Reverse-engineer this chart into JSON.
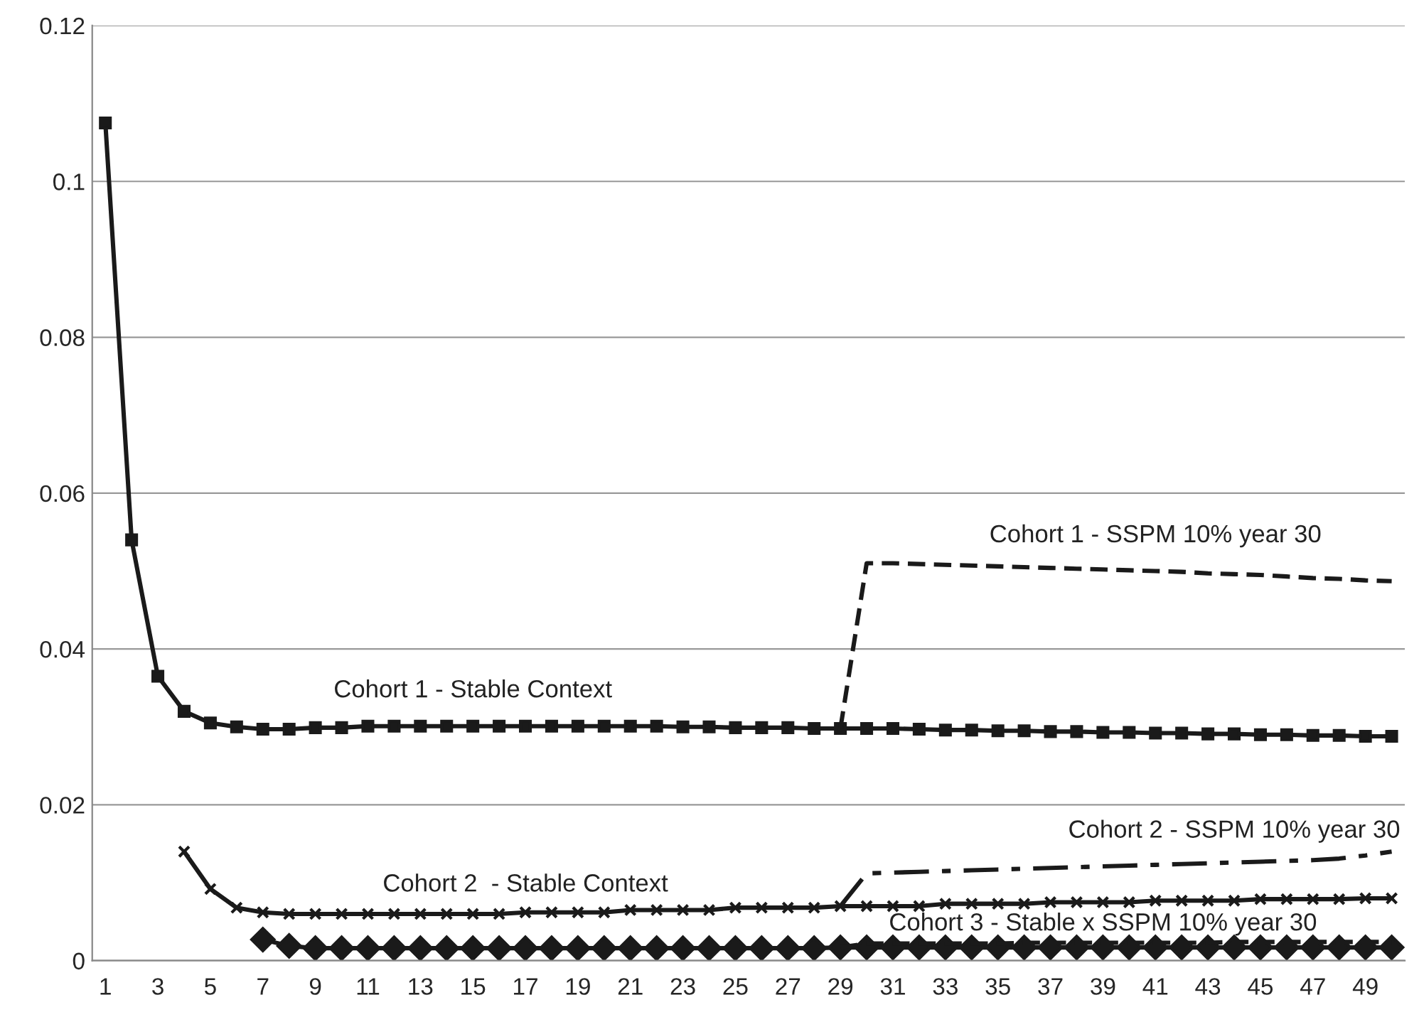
{
  "chart_data": {
    "type": "line",
    "categories": [
      "1",
      null,
      "3",
      null,
      "5",
      null,
      "7",
      null,
      "9",
      null,
      "11",
      null,
      "13",
      null,
      "15",
      null,
      "17",
      null,
      "19",
      null,
      "21",
      null,
      "23",
      null,
      "25",
      null,
      "27",
      null,
      "29",
      null,
      "31",
      null,
      "33",
      null,
      "35",
      null,
      "37",
      null,
      "39",
      null,
      "41",
      null,
      "43",
      null,
      "45",
      null,
      "47",
      null,
      "49",
      null
    ],
    "ylim": [
      0,
      0.12
    ],
    "yticks": [
      0,
      0.02,
      0.04,
      0.06,
      0.08,
      0.1,
      0.12
    ],
    "grid": "y",
    "legend": false,
    "series": [
      {
        "name": "Cohort 1 - Stable Context",
        "color": "#1a1a1a",
        "marker": "square",
        "line_style": "solid",
        "values": [
          0.1075,
          0.054,
          0.0365,
          0.032,
          0.0305,
          0.03,
          0.0297,
          0.0297,
          0.0299,
          0.0299,
          0.0301,
          0.0301,
          0.0301,
          0.0301,
          0.0301,
          0.0301,
          0.0301,
          0.0301,
          0.0301,
          0.0301,
          0.0301,
          0.0301,
          0.03,
          0.03,
          0.0299,
          0.0299,
          0.0299,
          0.0298,
          0.0298,
          0.0298,
          0.0298,
          0.0297,
          0.0296,
          0.0296,
          0.0295,
          0.0295,
          0.0294,
          0.0294,
          0.0293,
          0.0293,
          0.0292,
          0.0292,
          0.0291,
          0.0291,
          0.029,
          0.029,
          0.0289,
          0.0289,
          0.0288,
          0.0288
        ]
      },
      {
        "name": "Cohort 1 - SSPM 10% year 30",
        "color": "#1a1a1a",
        "marker": "none",
        "line_style": "dashed",
        "values": [
          null,
          null,
          null,
          null,
          null,
          null,
          null,
          null,
          null,
          null,
          null,
          null,
          null,
          null,
          null,
          null,
          null,
          null,
          null,
          null,
          null,
          null,
          null,
          null,
          null,
          null,
          null,
          null,
          0.0298,
          0.051,
          0.051,
          0.0509,
          0.0508,
          0.0507,
          0.0506,
          0.0505,
          0.0504,
          0.0503,
          0.0502,
          0.0501,
          0.05,
          0.0499,
          0.0497,
          0.0496,
          0.0495,
          0.0493,
          0.0491,
          0.049,
          0.0488,
          0.0487
        ]
      },
      {
        "name": "Cohort 2  - Stable Context",
        "color": "#1a1a1a",
        "marker": "cross",
        "line_style": "solid",
        "values": [
          null,
          null,
          null,
          0.014,
          0.0092,
          0.0068,
          0.0062,
          0.006,
          0.006,
          0.006,
          0.006,
          0.006,
          0.006,
          0.006,
          0.006,
          0.006,
          0.0062,
          0.0062,
          0.0062,
          0.0062,
          0.0065,
          0.0065,
          0.0065,
          0.0065,
          0.0068,
          0.0068,
          0.0068,
          0.0068,
          0.007,
          0.007,
          0.007,
          0.007,
          0.0073,
          0.0073,
          0.0073,
          0.0073,
          0.0075,
          0.0075,
          0.0075,
          0.0075,
          0.0077,
          0.0077,
          0.0077,
          0.0077,
          0.0079,
          0.0079,
          0.0079,
          0.0079,
          0.008,
          0.008
        ]
      },
      {
        "name": "Cohort 2 - SSPM 10% year 30",
        "color": "#1a1a1a",
        "marker": "none",
        "line_style": "dashdot",
        "values": [
          null,
          null,
          null,
          null,
          null,
          null,
          null,
          null,
          null,
          null,
          null,
          null,
          null,
          null,
          null,
          null,
          null,
          null,
          null,
          null,
          null,
          null,
          null,
          null,
          null,
          null,
          null,
          null,
          0.007,
          0.0112,
          0.0113,
          0.0114,
          0.0115,
          0.0116,
          0.0117,
          0.0118,
          0.0119,
          0.012,
          0.0121,
          0.0122,
          0.0123,
          0.0124,
          0.0125,
          0.0126,
          0.0127,
          0.0128,
          0.0129,
          0.0131,
          0.0135,
          0.014
        ]
      },
      {
        "name": "Cohort 3 - Stable x SSPM 10% year 30",
        "color": "#1a1a1a",
        "marker": "diamond",
        "line_style": "solid",
        "values": [
          null,
          null,
          null,
          null,
          null,
          null,
          0.0027,
          0.0019,
          0.0016,
          0.0016,
          0.0016,
          0.0016,
          0.0016,
          0.0016,
          0.0016,
          0.0016,
          0.0016,
          0.0016,
          0.0016,
          0.0016,
          0.0016,
          0.0016,
          0.0016,
          0.0016,
          0.0016,
          0.0016,
          0.0016,
          0.0016,
          0.0017,
          0.0017,
          0.0017,
          0.0017,
          0.0017,
          0.0017,
          0.0017,
          0.0017,
          0.0017,
          0.0017,
          0.0017,
          0.0017,
          0.0017,
          0.0017,
          0.0017,
          0.0017,
          0.0017,
          0.0017,
          0.0017,
          0.0017,
          0.0017,
          0.0017
        ]
      },
      {
        "color": "#1a1a1a",
        "marker": "none",
        "line_style": "dashed",
        "values": [
          null,
          null,
          null,
          null,
          null,
          null,
          null,
          null,
          null,
          null,
          null,
          null,
          null,
          null,
          null,
          null,
          null,
          null,
          null,
          null,
          null,
          null,
          null,
          null,
          null,
          null,
          null,
          null,
          0.0017,
          0.0022,
          0.0022,
          0.0022,
          0.0022,
          0.0022,
          0.0022,
          0.0023,
          0.0023,
          0.0023,
          0.0023,
          0.0023,
          0.0023,
          0.0023,
          0.0023,
          0.0024,
          0.0024,
          0.0024,
          0.0024,
          0.0024,
          0.0024,
          0.0024
        ]
      }
    ]
  }
}
